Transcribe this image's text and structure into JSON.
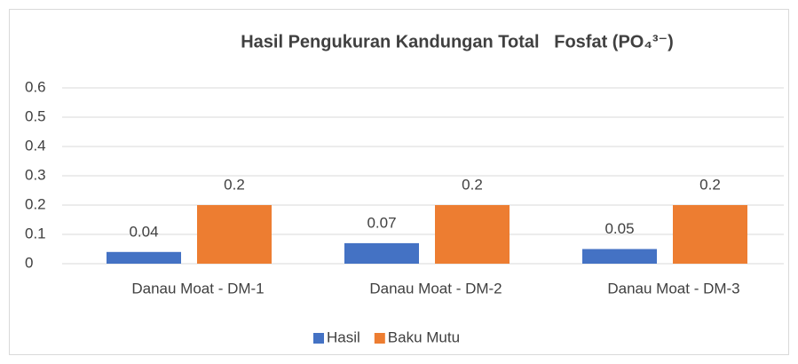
{
  "chart_data": {
    "type": "bar",
    "title": "Hasil Pengukuran Kandungan Total   Fosfat (PO₄³⁻)",
    "categories": [
      "Danau Moat - DM-1",
      "Danau Moat - DM-2",
      "Danau Moat - DM-3"
    ],
    "series": [
      {
        "name": "Hasil",
        "color": "#4472c4",
        "values": [
          0.04,
          0.07,
          0.05
        ]
      },
      {
        "name": "Baku Mutu",
        "color": "#ed7d31",
        "values": [
          0.2,
          0.2,
          0.2
        ]
      }
    ],
    "ylim": [
      0,
      0.6
    ],
    "yticks": [
      0,
      0.1,
      0.2,
      0.3,
      0.4,
      0.5,
      0.6
    ],
    "grid": true,
    "legend": "bottom"
  }
}
